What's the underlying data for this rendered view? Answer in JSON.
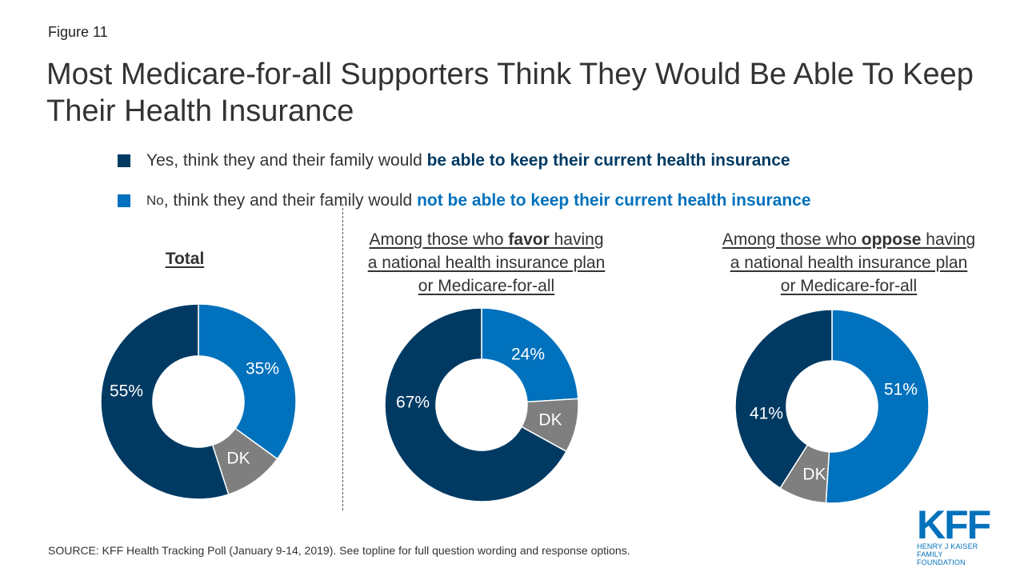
{
  "figure_label": "Figure 11",
  "title": "Most Medicare-for-all Supporters Think They Would Be Able To Keep Their Health Insurance",
  "legend": {
    "yes": {
      "prefix": "Yes, think they and their family would ",
      "highlight": "be able to keep their current health insurance",
      "color": "#003a63"
    },
    "no": {
      "first": "No",
      "prefix": ", think they and their family would ",
      "highlight": "not be able to keep their current health insurance",
      "color": "#0071bc"
    }
  },
  "panels": {
    "total": "Total",
    "favor": [
      "Among those who ",
      "favor",
      " having",
      "a national health insurance plan",
      "or Medicare-for-all"
    ],
    "oppose": [
      "Among those who ",
      "oppose",
      " having",
      "a national health insurance plan",
      "or Medicare-for-all"
    ]
  },
  "colors": {
    "yes": "#003a63",
    "no": "#0071bc",
    "dk": "#7f7f7f"
  },
  "chart_data": [
    {
      "type": "pie",
      "title": "Total",
      "slices": [
        {
          "label": "No",
          "value": 35,
          "display": "35%"
        },
        {
          "label": "DK",
          "value": 10,
          "display": "DK"
        },
        {
          "label": "Yes",
          "value": 55,
          "display": "55%"
        }
      ]
    },
    {
      "type": "pie",
      "title": "Among those who favor having a national health insurance plan or Medicare-for-all",
      "slices": [
        {
          "label": "No",
          "value": 24,
          "display": "24%"
        },
        {
          "label": "DK",
          "value": 9,
          "display": "DK"
        },
        {
          "label": "Yes",
          "value": 67,
          "display": "67%"
        }
      ]
    },
    {
      "type": "pie",
      "title": "Among those who oppose having a national health insurance plan or Medicare-for-all",
      "slices": [
        {
          "label": "No",
          "value": 51,
          "display": "51%"
        },
        {
          "label": "DK",
          "value": 8,
          "display": "DK"
        },
        {
          "label": "Yes",
          "value": 41,
          "display": "41%"
        }
      ]
    }
  ],
  "footer": "SOURCE: KFF Health Tracking Poll (January 9-14, 2019). See topline for full question wording and response options.",
  "logo": {
    "mark": "KFF",
    "line1": "HENRY J KAISER",
    "line2": "FAMILY FOUNDATION"
  }
}
